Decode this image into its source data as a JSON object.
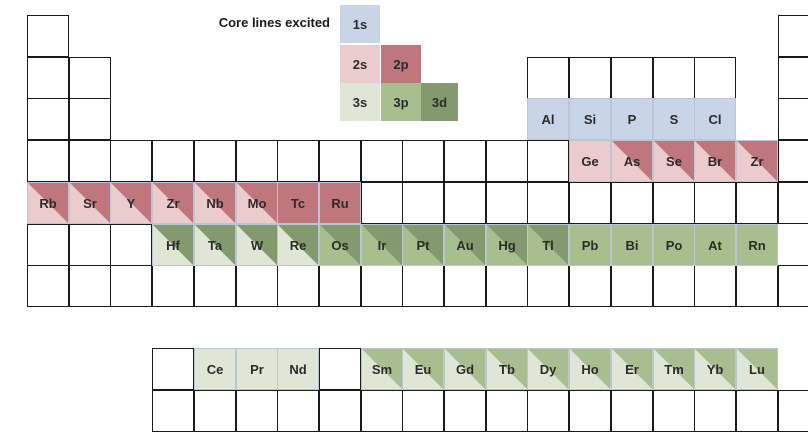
{
  "legend": {
    "title": "Core lines excited",
    "keys": [
      {
        "label": "1s",
        "color": "#c7d5e6"
      },
      {
        "label": "2s",
        "color": "#eccbcd"
      },
      {
        "label": "2p",
        "color": "#c0767d"
      },
      {
        "label": "3s",
        "color": "#e0e6d6"
      },
      {
        "label": "3p",
        "color": "#a9be8e"
      },
      {
        "label": "3d",
        "color": "#839a6e"
      }
    ]
  },
  "elements": [
    {
      "symbol": "Al",
      "fill": "#c7d5e6"
    },
    {
      "symbol": "Si",
      "fill": "#c7d5e6"
    },
    {
      "symbol": "P",
      "fill": "#c7d5e6"
    },
    {
      "symbol": "S",
      "fill": "#c7d5e6"
    },
    {
      "symbol": "Cl",
      "fill": "#c7d5e6"
    },
    {
      "symbol": "Ge",
      "fill": "#eccbcd"
    },
    {
      "symbol": "As",
      "fill": "#eccbcd",
      "fill2": "#c0767d"
    },
    {
      "symbol": "Se",
      "fill": "#eccbcd",
      "fill2": "#c0767d"
    },
    {
      "symbol": "Br",
      "fill": "#eccbcd",
      "fill2": "#c0767d"
    },
    {
      "symbol": "Zr",
      "fill": "#eccbcd",
      "fill2": "#c0767d"
    },
    {
      "symbol": "Rb",
      "fill": "#eccbcd",
      "fill2": "#c0767d"
    },
    {
      "symbol": "Sr",
      "fill": "#eccbcd",
      "fill2": "#c0767d"
    },
    {
      "symbol": "Y",
      "fill": "#eccbcd",
      "fill2": "#c0767d"
    },
    {
      "symbol": "Zr",
      "fill": "#eccbcd",
      "fill2": "#c0767d"
    },
    {
      "symbol": "Nb",
      "fill": "#eccbcd",
      "fill2": "#c0767d"
    },
    {
      "symbol": "Mo",
      "fill": "#eccbcd",
      "fill2": "#c0767d"
    },
    {
      "symbol": "Tc",
      "fill": "#c0767d"
    },
    {
      "symbol": "Ru",
      "fill": "#c0767d"
    },
    {
      "symbol": "Hf",
      "fill": "#e0e6d6",
      "fill2": "#839a6e"
    },
    {
      "symbol": "Ta",
      "fill": "#e0e6d6",
      "fill2": "#839a6e"
    },
    {
      "symbol": "W",
      "fill": "#e0e6d6",
      "fill2": "#839a6e"
    },
    {
      "symbol": "Re",
      "fill": "#e0e6d6",
      "fill2": "#839a6e"
    },
    {
      "symbol": "Os",
      "fill": "#a9be8e",
      "fill2": "#839a6e"
    },
    {
      "symbol": "Ir",
      "fill": "#a9be8e",
      "fill2": "#839a6e"
    },
    {
      "symbol": "Pt",
      "fill": "#a9be8e",
      "fill2": "#839a6e"
    },
    {
      "symbol": "Au",
      "fill": "#a9be8e",
      "fill2": "#839a6e"
    },
    {
      "symbol": "Hg",
      "fill": "#a9be8e",
      "fill2": "#839a6e"
    },
    {
      "symbol": "Tl",
      "fill": "#a9be8e",
      "fill2": "#839a6e"
    },
    {
      "symbol": "Pb",
      "fill": "#a9be8e"
    },
    {
      "symbol": "Bi",
      "fill": "#a9be8e"
    },
    {
      "symbol": "Po",
      "fill": "#a9be8e"
    },
    {
      "symbol": "At",
      "fill": "#a9be8e"
    },
    {
      "symbol": "Rn",
      "fill": "#a9be8e"
    },
    {
      "symbol": "Ce",
      "fill": "#e0e6d6"
    },
    {
      "symbol": "Pr",
      "fill": "#e0e6d6"
    },
    {
      "symbol": "Nd",
      "fill": "#e0e6d6"
    },
    {
      "symbol": "Sm",
      "fill": "#e0e6d6",
      "fill2": "#a9be8e"
    },
    {
      "symbol": "Eu",
      "fill": "#e0e6d6",
      "fill2": "#a9be8e"
    },
    {
      "symbol": "Gd",
      "fill": "#e0e6d6",
      "fill2": "#a9be8e"
    },
    {
      "symbol": "Tb",
      "fill": "#e0e6d6",
      "fill2": "#a9be8e"
    },
    {
      "symbol": "Dy",
      "fill": "#e0e6d6",
      "fill2": "#a9be8e"
    },
    {
      "symbol": "Ho",
      "fill": "#e0e6d6",
      "fill2": "#a9be8e"
    },
    {
      "symbol": "Er",
      "fill": "#e0e6d6",
      "fill2": "#a9be8e"
    },
    {
      "symbol": "Tm",
      "fill": "#e0e6d6",
      "fill2": "#a9be8e"
    },
    {
      "symbol": "Yb",
      "fill": "#e0e6d6",
      "fill2": "#a9be8e"
    },
    {
      "symbol": "Lu",
      "fill": "#e0e6d6",
      "fill2": "#a9be8e"
    }
  ]
}
